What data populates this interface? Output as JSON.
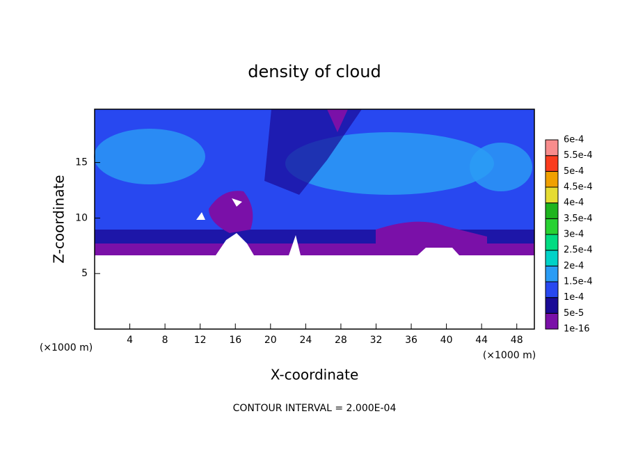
{
  "chart_data": {
    "type": "contour",
    "title": "density of cloud",
    "x_label": "X-coordinate",
    "y_label": "Z-coordinate",
    "x_unit": "(×1000 m)",
    "y_unit": "(×1000 m)",
    "footer": "CONTOUR INTERVAL = 2.000E-04",
    "xlim": [
      0,
      50
    ],
    "xticks": [
      4,
      8,
      12,
      16,
      20,
      24,
      28,
      32,
      36,
      40,
      44,
      48
    ],
    "ylim": [
      0,
      19.8
    ],
    "yticks": [
      5,
      10,
      15
    ],
    "colorbar": {
      "levels": [
        {
          "value": 1e-16,
          "label": "1e-16"
        },
        {
          "value": 5e-05,
          "label": "5e-5"
        },
        {
          "value": 0.0001,
          "label": "1e-4"
        },
        {
          "value": 0.00015,
          "label": "1.5e-4"
        },
        {
          "value": 0.0002,
          "label": "2e-4"
        },
        {
          "value": 0.00025,
          "label": "2.5e-4"
        },
        {
          "value": 0.0003,
          "label": "3e-4"
        },
        {
          "value": 0.00035,
          "label": "3.5e-4"
        },
        {
          "value": 0.0004,
          "label": "4e-4"
        },
        {
          "value": 0.00045,
          "label": "4.5e-4"
        },
        {
          "value": 0.0005,
          "label": "5e-4"
        },
        {
          "value": 0.00055,
          "label": "5.5e-4"
        },
        {
          "value": 0.0006,
          "label": "6e-4"
        }
      ],
      "colors": [
        "#7a10a8",
        "#1a0a96",
        "#2848f0",
        "#2a9cf5",
        "#00d2c8",
        "#00dc82",
        "#28d232",
        "#1eb41e",
        "#e6dc32",
        "#f0a000",
        "#fa3c1e",
        "#f88c8c"
      ]
    }
  }
}
